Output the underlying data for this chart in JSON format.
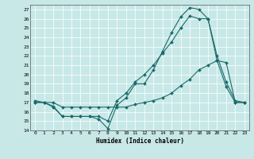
{
  "xlabel": "Humidex (Indice chaleur)",
  "xlim": [
    -0.5,
    23.5
  ],
  "ylim": [
    14,
    27.5
  ],
  "yticks": [
    14,
    15,
    16,
    17,
    18,
    19,
    20,
    21,
    22,
    23,
    24,
    25,
    26,
    27
  ],
  "xticks": [
    0,
    1,
    2,
    3,
    4,
    5,
    6,
    7,
    8,
    9,
    10,
    11,
    12,
    13,
    14,
    15,
    16,
    17,
    18,
    19,
    20,
    21,
    22,
    23
  ],
  "bg_color": "#c8e8e8",
  "line_color": "#1a6b6b",
  "line1_x": [
    0,
    1,
    2,
    3,
    4,
    5,
    6,
    7,
    8,
    9,
    10,
    11,
    12,
    13,
    14,
    15,
    16,
    17,
    18,
    19,
    20,
    21,
    22,
    23
  ],
  "line1_y": [
    17.0,
    17.0,
    16.6,
    15.5,
    15.5,
    15.5,
    15.5,
    15.2,
    14.2,
    16.7,
    17.5,
    19.0,
    19.0,
    20.5,
    22.5,
    24.5,
    26.2,
    27.2,
    27.0,
    26.0,
    21.5,
    18.7,
    17.0,
    17.0
  ],
  "line2_x": [
    0,
    1,
    2,
    3,
    4,
    5,
    6,
    7,
    8,
    9,
    10,
    11,
    12,
    13,
    14,
    15,
    16,
    17,
    18,
    19,
    20,
    21,
    22,
    23
  ],
  "line2_y": [
    17.2,
    17.0,
    16.5,
    15.5,
    15.5,
    15.5,
    15.5,
    15.5,
    15.0,
    17.2,
    18.0,
    19.2,
    20.0,
    21.0,
    22.3,
    23.5,
    25.0,
    26.3,
    26.0,
    26.0,
    22.0,
    19.2,
    17.2,
    17.0
  ],
  "line3_x": [
    0,
    1,
    2,
    3,
    4,
    5,
    6,
    7,
    8,
    9,
    10,
    11,
    12,
    13,
    14,
    15,
    16,
    17,
    18,
    19,
    20,
    21,
    22,
    23
  ],
  "line3_y": [
    17.0,
    17.0,
    17.0,
    16.5,
    16.5,
    16.5,
    16.5,
    16.5,
    16.5,
    16.5,
    16.5,
    16.8,
    17.0,
    17.2,
    17.5,
    18.0,
    18.8,
    19.5,
    20.5,
    21.0,
    21.5,
    21.3,
    17.0,
    17.0
  ]
}
